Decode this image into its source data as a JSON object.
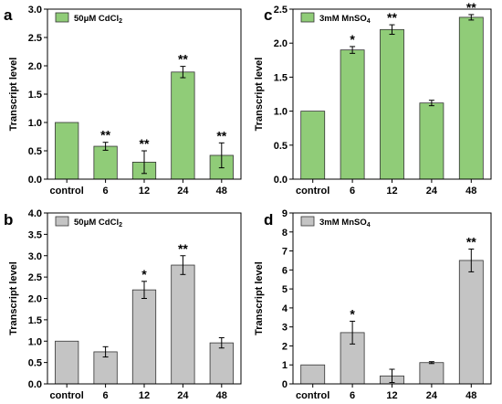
{
  "chart_data": [
    {
      "panel": "a",
      "type": "bar",
      "legend": {
        "text": "50μM CdCl",
        "sub": "2",
        "location": "top-left"
      },
      "ylabel": "Transcript level",
      "categories": [
        "control",
        "6",
        "12",
        "24",
        "48"
      ],
      "values": [
        1.0,
        0.58,
        0.3,
        1.89,
        0.42
      ],
      "errors": [
        0.0,
        0.07,
        0.2,
        0.1,
        0.22
      ],
      "annotations": [
        "",
        "**",
        "**",
        "**",
        "**"
      ],
      "ylim": [
        0,
        3.0
      ],
      "yticks": [
        0.0,
        0.5,
        1.0,
        1.5,
        2.0,
        2.5,
        3.0
      ],
      "ytick_labels": [
        "0.0",
        "0.5",
        "1.0",
        "1.5",
        "2.0",
        "2.5",
        "3.0"
      ],
      "bar_color": "#90cc78"
    },
    {
      "panel": "c",
      "type": "bar",
      "legend": {
        "text": "3mM MnSO",
        "sub": "4",
        "location": "top-left"
      },
      "ylabel": "Transcript level",
      "categories": [
        "control",
        "6",
        "12",
        "24",
        "48"
      ],
      "values": [
        1.0,
        1.9,
        2.2,
        1.12,
        2.38
      ],
      "errors": [
        0.0,
        0.05,
        0.07,
        0.04,
        0.04
      ],
      "annotations": [
        "",
        "*",
        "**",
        "",
        "**"
      ],
      "ylim": [
        0,
        2.5
      ],
      "yticks": [
        0.0,
        0.5,
        1.0,
        1.5,
        2.0,
        2.5
      ],
      "ytick_labels": [
        "0.0",
        "0.5",
        "1.0",
        "1.5",
        "2.0",
        "2.5"
      ],
      "bar_color": "#90cc78"
    },
    {
      "panel": "b",
      "type": "bar",
      "legend": {
        "text": "50μM CdCl",
        "sub": "2",
        "location": "top-left"
      },
      "ylabel": "Transcript level",
      "categories": [
        "control",
        "6",
        "12",
        "24",
        "48"
      ],
      "values": [
        1.0,
        0.75,
        2.2,
        2.78,
        0.96
      ],
      "errors": [
        0.0,
        0.12,
        0.2,
        0.22,
        0.12
      ],
      "annotations": [
        "",
        "",
        "*",
        "**",
        ""
      ],
      "ylim": [
        0,
        4.0
      ],
      "yticks": [
        0.0,
        0.5,
        1.0,
        1.5,
        2.0,
        2.5,
        3.0,
        3.5,
        4.0
      ],
      "ytick_labels": [
        "0.0",
        "0.5",
        "1.0",
        "1.5",
        "2.0",
        "2.5",
        "3.0",
        "3.5",
        "4.0"
      ],
      "bar_color": "#c4c4c4"
    },
    {
      "panel": "d",
      "type": "bar",
      "legend": {
        "text": "3mM MnSO",
        "sub": "4",
        "location": "top-left"
      },
      "ylabel": "Transcript level",
      "categories": [
        "control",
        "6",
        "12",
        "24",
        "48"
      ],
      "values": [
        1.0,
        2.7,
        0.42,
        1.12,
        6.5
      ],
      "errors": [
        0.0,
        0.6,
        0.35,
        0.05,
        0.6
      ],
      "annotations": [
        "",
        "*",
        "",
        "",
        "**"
      ],
      "ylim": [
        0,
        9
      ],
      "yticks": [
        0,
        1,
        2,
        3,
        4,
        5,
        6,
        7,
        8,
        9
      ],
      "ytick_labels": [
        "0",
        "1",
        "2",
        "3",
        "4",
        "5",
        "6",
        "7",
        "8",
        "9"
      ],
      "bar_color": "#c4c4c4"
    }
  ]
}
